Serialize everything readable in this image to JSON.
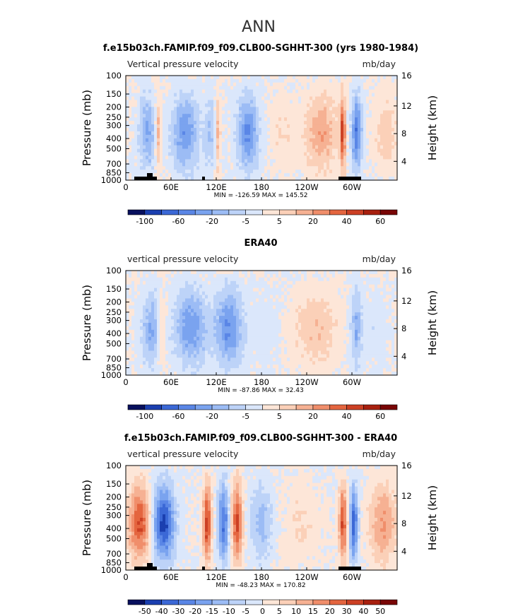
{
  "main_title": "ANN",
  "chart_data": [
    {
      "type": "heatmap",
      "title": "f.e15b03ch.FAMIP.f09_f09.CLB00-SGHHT-300 (yrs 1980-1984)",
      "variable": "Vertical pressure velocity",
      "units": "mb/day",
      "ylabel": "Pressure (mb)",
      "ylabel_right": "Height (km)",
      "x_ticks": [
        "0",
        "60E",
        "120E",
        "180",
        "120W",
        "60W"
      ],
      "y_ticks": [
        "100",
        "150",
        "200",
        "250",
        "300",
        "400",
        "500",
        "700",
        "850",
        "1000"
      ],
      "y_right_ticks": [
        "16",
        "12",
        "8",
        "4"
      ],
      "stats": "MIN = -126.59   MAX = 145.52",
      "colorbar_labels": [
        "-100",
        "-60",
        "-20",
        "-5",
        "5",
        "20",
        "40",
        "60"
      ],
      "colors": [
        "#08105e",
        "#1b3fb0",
        "#3b68d6",
        "#5a86e6",
        "#7aa3ef",
        "#9cbcf5",
        "#bdd3f8",
        "#dbe7fb",
        "#fde6d8",
        "#fbd0b8",
        "#f6b193",
        "#f08e6b",
        "#e4653f",
        "#cc4024",
        "#a8200f",
        "#790606"
      ]
    },
    {
      "type": "heatmap",
      "title": "ERA40",
      "variable": "vertical pressure velocity",
      "units": "mb/day",
      "ylabel": "Pressure (mb)",
      "ylabel_right": "Height (km)",
      "x_ticks": [
        "0",
        "60E",
        "120E",
        "180",
        "120W",
        "60W"
      ],
      "y_ticks": [
        "100",
        "150",
        "200",
        "250",
        "300",
        "400",
        "500",
        "700",
        "850",
        "1000"
      ],
      "y_right_ticks": [
        "16",
        "12",
        "8",
        "4"
      ],
      "stats": "MIN = -87.86   MAX = 32.43",
      "colorbar_labels": [
        "-100",
        "-60",
        "-20",
        "-5",
        "5",
        "20",
        "40",
        "60"
      ],
      "colors": [
        "#08105e",
        "#1b3fb0",
        "#3b68d6",
        "#5a86e6",
        "#7aa3ef",
        "#9cbcf5",
        "#bdd3f8",
        "#dbe7fb",
        "#fde6d8",
        "#fbd0b8",
        "#f6b193",
        "#f08e6b",
        "#e4653f",
        "#cc4024",
        "#a8200f",
        "#790606"
      ]
    },
    {
      "type": "heatmap",
      "title": "f.e15b03ch.FAMIP.f09_f09.CLB00-SGHHT-300 - ERA40",
      "variable": "vertical pressure velocity",
      "units": "mb/day",
      "ylabel": "Pressure (mb)",
      "ylabel_right": "Height (km)",
      "x_ticks": [
        "0",
        "60E",
        "120E",
        "180",
        "120W",
        "60W"
      ],
      "y_ticks": [
        "100",
        "150",
        "200",
        "250",
        "300",
        "400",
        "500",
        "700",
        "850",
        "1000"
      ],
      "y_right_ticks": [
        "16",
        "12",
        "8",
        "4"
      ],
      "stats": "MIN = -48.23   MAX = 170.82",
      "colorbar_labels": [
        "-50",
        "-40",
        "-30",
        "-20",
        "-15",
        "-10",
        "-5",
        "0",
        "5",
        "10",
        "15",
        "20",
        "30",
        "40",
        "50"
      ],
      "colors": [
        "#08105e",
        "#1b3fb0",
        "#3b68d6",
        "#5a86e6",
        "#7aa3ef",
        "#9cbcf5",
        "#bdd3f8",
        "#dbe7fb",
        "#fde6d8",
        "#fbd0b8",
        "#f6b193",
        "#f08e6b",
        "#e4653f",
        "#cc4024",
        "#a8200f",
        "#790606"
      ]
    }
  ]
}
